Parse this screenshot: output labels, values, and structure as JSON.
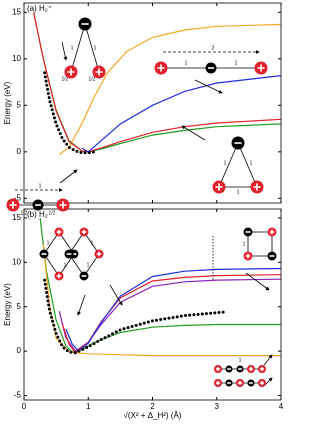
{
  "chart_data": [
    {
      "type": "line",
      "title": "(a) H₂⁺",
      "ylabel": "Energy (eV)",
      "xlim": [
        0,
        4
      ],
      "xticks": [
        0,
        1,
        2,
        3,
        4
      ],
      "xtick_labels": false,
      "ylim": [
        -5.5,
        16
      ],
      "yticks": [
        -5,
        0,
        5,
        10,
        15
      ],
      "series": [
        {
          "color": "#f5a623",
          "style": "solid",
          "x": [
            0.55,
            0.7,
            0.9,
            1.1,
            1.3,
            1.6,
            2,
            2.5,
            3,
            4
          ],
          "values": [
            -0.3,
            0.5,
            3,
            6,
            8.5,
            10.8,
            12.3,
            13.1,
            13.5,
            13.7
          ]
        },
        {
          "color": "#1f9e1f",
          "style": "solid",
          "x": [
            0.15,
            0.3,
            0.5,
            0.7,
            0.9,
            1.0,
            1.2,
            1.5,
            2,
            2.5,
            3,
            4
          ],
          "values": [
            15,
            10,
            4.5,
            1.2,
            0.1,
            0,
            0.3,
            0.9,
            1.8,
            2.3,
            2.7,
            3.0
          ]
        },
        {
          "color": "#e0202a",
          "style": "solid",
          "x": [
            0.15,
            0.3,
            0.5,
            0.7,
            0.9,
            1.0,
            1.2,
            1.5,
            2,
            2.5,
            3,
            4
          ],
          "values": [
            15,
            10,
            4.4,
            1.1,
            0.1,
            0,
            0.4,
            1.1,
            2.1,
            2.7,
            3.1,
            3.5
          ]
        },
        {
          "color": "#1f2fe0",
          "style": "solid",
          "x": [
            0.9,
            1.0,
            1.2,
            1.5,
            2,
            2.5,
            3,
            4
          ],
          "values": [
            0.4,
            0,
            1.2,
            3,
            5,
            6.5,
            7.4,
            8.2
          ]
        },
        {
          "color": "#000000",
          "style": "dotted",
          "x": [
            0.32,
            0.4,
            0.5,
            0.6,
            0.7,
            0.8,
            0.9,
            1.0,
            1.1
          ],
          "values": [
            8.5,
            5.5,
            3,
            1.4,
            0.5,
            0.1,
            -0.1,
            -0.1,
            0
          ]
        }
      ],
      "annotations": [
        "1",
        "1",
        "1/2",
        "1/2",
        "2",
        "1",
        "1",
        "1",
        "1/2",
        "1/2",
        "1",
        "1",
        "1"
      ]
    },
    {
      "type": "line",
      "title": "(b) H₂",
      "ylabel": "Energy (eV)",
      "xlabel": "√(X² + Δ_H²) (Å)",
      "xlim": [
        0,
        4
      ],
      "xticks": [
        0,
        1,
        2,
        3,
        4
      ],
      "xtick_labels": true,
      "ylim": [
        -5.5,
        16
      ],
      "yticks": [
        -5,
        0,
        5,
        10,
        15
      ],
      "series": [
        {
          "color": "#1f9e1f",
          "style": "solid",
          "x": [
            0.25,
            0.35,
            0.5,
            0.65,
            0.75,
            0.9,
            1.1,
            1.5,
            2,
            2.5,
            3,
            4
          ],
          "values": [
            15,
            9,
            3.5,
            0.6,
            -0.1,
            0.2,
            1,
            2.1,
            2.7,
            2.9,
            3.0,
            3.0
          ]
        },
        {
          "color": "#f5a623",
          "style": "solid",
          "x": [
            0.3,
            0.4,
            0.5,
            0.7,
            1.0,
            1.5,
            2,
            4
          ],
          "values": [
            12,
            5,
            1.5,
            -0.1,
            -0.3,
            -0.4,
            -0.5,
            -0.5
          ]
        },
        {
          "color": "#8a1fbf",
          "style": "solid",
          "x": [
            0.55,
            0.65,
            0.8,
            1.0,
            1.2,
            1.5,
            2,
            2.5,
            3,
            4
          ],
          "values": [
            4.5,
            1.5,
            0,
            1,
            3,
            5.5,
            7.3,
            7.8,
            8,
            8.1
          ]
        },
        {
          "color": "#e0202a",
          "style": "solid",
          "x": [
            0.6,
            0.7,
            0.8,
            1.0,
            1.2,
            1.5,
            2,
            2.5,
            3,
            4
          ],
          "values": [
            3,
            0.8,
            -0.2,
            1,
            3.3,
            6,
            7.9,
            8.3,
            8.5,
            8.6
          ]
        },
        {
          "color": "#1f2fe0",
          "style": "solid",
          "x": [
            0.65,
            0.75,
            0.85,
            1.0,
            1.2,
            1.5,
            2,
            2.5,
            3,
            4
          ],
          "values": [
            2.5,
            0.8,
            0,
            0.9,
            3.2,
            6.2,
            8.4,
            9,
            9.2,
            9.3
          ]
        },
        {
          "color": "#000000",
          "style": "dotted",
          "x": [
            0.32,
            0.4,
            0.5,
            0.6,
            0.7,
            0.8,
            1.0,
            1.2,
            1.5,
            2,
            2.5,
            3.1
          ],
          "values": [
            8,
            4.5,
            2,
            0.5,
            -0.1,
            -0.2,
            0.5,
            1.3,
            2.4,
            3.4,
            4,
            4.4
          ]
        }
      ],
      "annotations": [
        "1",
        "1",
        "1",
        "1",
        "1",
        "1"
      ]
    }
  ]
}
